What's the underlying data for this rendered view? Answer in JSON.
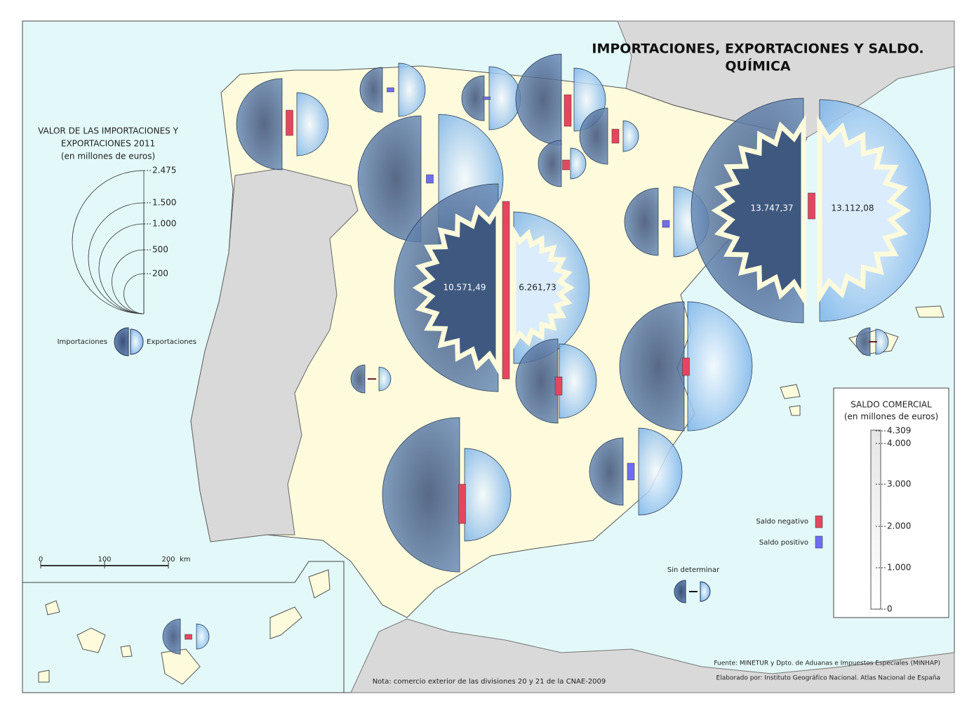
{
  "header": {
    "title": "IMPORTACIONES, EXPORTACIONES Y SALDO.",
    "subtitle": "QUÍMICA"
  },
  "value_legend": {
    "title": [
      "VALOR DE LAS IMPORTACIONES Y",
      "EXPORTACIONES 2011",
      "(en millones de euros)"
    ],
    "ticks": [
      "2.475",
      "1.500",
      "1.000",
      "500",
      "200"
    ],
    "imports": "Importaciones",
    "exports": "Exportaciones"
  },
  "scale_bar": {
    "ticks": [
      "0",
      "100",
      "200"
    ],
    "unit": "km"
  },
  "map_labels": {
    "madrid_imports": "10.571,49",
    "madrid_exports": "6.261,73",
    "cataluna_imports": "13.747,37",
    "cataluna_exports": "13.112,08"
  },
  "balance_legend": {
    "title": "SALDO COMERCIAL",
    "subtitle": "(en millones de euros)",
    "ticks": [
      "4.309",
      "4.000",
      "3.000",
      "2.000",
      "1.000",
      "0"
    ],
    "negative": "Saldo negativo",
    "positive": "Saldo positivo",
    "undetermined": "Sin determinar"
  },
  "notes": {
    "note": "Nota: comercio exterior de las divisiones 20 y 21 de la CNAE-2009",
    "source": "Fuente: MINETUR y Dpto. de Aduanas e Impuestos Especiales (MINHAP)",
    "credit": "Elaborado por: Instituto Geográfico Nacional. Atlas Nacional de España"
  }
}
